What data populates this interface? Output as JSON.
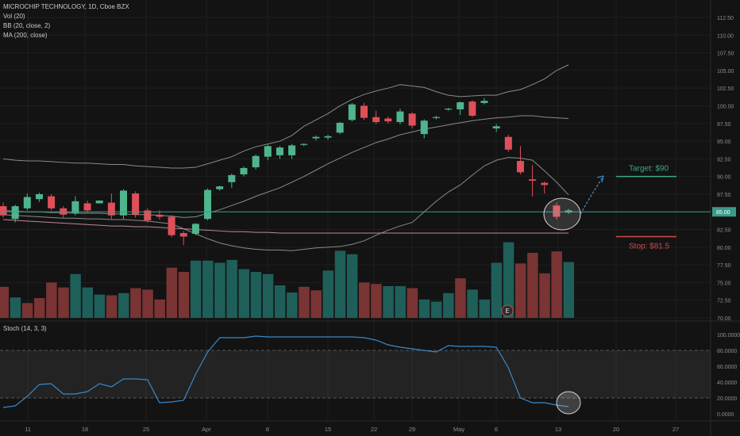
{
  "header": {
    "symbol_line": "MICROCHIP TECHNOLOGY, 1D, Cboe BZX",
    "indicator_vol": "Vol (20)",
    "indicator_bb": "BB (20, close, 2)",
    "indicator_ma": "MA (200, close)"
  },
  "stoch": {
    "label": "Stoch (14, 3, 3)"
  },
  "annotations": {
    "target_label": "Target: $90",
    "stop_label": "Stop: $81.5",
    "price_label": "85.00",
    "event_badge": "E"
  },
  "colors": {
    "background": "#131313",
    "up": "#4fb58c",
    "down": "#e0505a",
    "vol_up": "#1f5f5a",
    "vol_down": "#7a3434",
    "bb": "#8a8a8a",
    "ma": "#c08898",
    "price_line": "#3a9a88",
    "stoch_line": "#3a88c8",
    "target": "#3fa58a",
    "stop": "#d04a4a"
  },
  "chart_data": {
    "type": "candlestick",
    "title": "MICROCHIP TECHNOLOGY, 1D, Cboe BZX",
    "y_ticks": [
      "112.50",
      "110.00",
      "107.50",
      "105.00",
      "102.50",
      "100.00",
      "97.50",
      "95.00",
      "92.50",
      "90.00",
      "87.50",
      "85.00",
      "82.50",
      "80.00",
      "77.50",
      "75.00",
      "72.50",
      "70.00"
    ],
    "x_ticks": [
      "11",
      "18",
      "25",
      "Apr",
      "8",
      "15",
      "22",
      "29",
      "May",
      "6",
      "13",
      "20",
      "27"
    ],
    "stoch_ticks": [
      "100.0000",
      "80.0000",
      "60.0000",
      "40.0000",
      "20.0000",
      "0.0000"
    ],
    "stoch_band": [
      20,
      80
    ],
    "ylim": [
      70,
      114
    ],
    "candles": [
      {
        "o": 85.8,
        "h": 86.3,
        "c": 84.5,
        "l": 84.2
      },
      {
        "o": 84.0,
        "h": 86.0,
        "c": 85.8,
        "l": 83.5
      },
      {
        "o": 85.5,
        "h": 87.6,
        "c": 87.1,
        "l": 85.2
      },
      {
        "o": 86.8,
        "h": 87.7,
        "c": 87.5,
        "l": 86.4
      },
      {
        "o": 87.2,
        "h": 87.5,
        "c": 85.5,
        "l": 85.2
      },
      {
        "o": 85.5,
        "h": 85.8,
        "c": 84.6,
        "l": 84.2
      },
      {
        "o": 84.8,
        "h": 87.2,
        "c": 86.5,
        "l": 84.5
      },
      {
        "o": 86.2,
        "h": 86.6,
        "c": 85.2,
        "l": 84.9
      },
      {
        "o": 86.2,
        "h": 86.6,
        "c": 86.6,
        "l": 86.2
      },
      {
        "o": 86.3,
        "h": 87.6,
        "c": 84.5,
        "l": 84.0
      },
      {
        "o": 84.5,
        "h": 88.2,
        "c": 88.0,
        "l": 84.0
      },
      {
        "o": 87.6,
        "h": 87.9,
        "c": 84.6,
        "l": 84.2
      },
      {
        "o": 85.2,
        "h": 85.5,
        "c": 83.8,
        "l": 83.5
      },
      {
        "o": 84.6,
        "h": 85.2,
        "c": 84.3,
        "l": 83.9
      },
      {
        "o": 84.3,
        "h": 84.5,
        "c": 81.7,
        "l": 81.4
      },
      {
        "o": 82.0,
        "h": 82.3,
        "c": 81.5,
        "l": 80.3
      },
      {
        "o": 81.9,
        "h": 83.4,
        "c": 83.3,
        "l": 81.7
      },
      {
        "o": 84.0,
        "h": 88.3,
        "c": 88.1,
        "l": 83.8
      },
      {
        "o": 88.2,
        "h": 88.7,
        "c": 88.6,
        "l": 88.0
      },
      {
        "o": 89.2,
        "h": 90.4,
        "c": 90.2,
        "l": 88.4
      },
      {
        "o": 90.3,
        "h": 91.4,
        "c": 91.2,
        "l": 90.0
      },
      {
        "o": 91.3,
        "h": 93.1,
        "c": 92.9,
        "l": 91.0
      },
      {
        "o": 92.8,
        "h": 94.5,
        "c": 94.3,
        "l": 92.3
      },
      {
        "o": 93.0,
        "h": 94.3,
        "c": 94.1,
        "l": 92.5
      },
      {
        "o": 93.0,
        "h": 94.6,
        "c": 94.4,
        "l": 92.5
      },
      {
        "o": 94.5,
        "h": 94.7,
        "c": 94.6,
        "l": 94.3
      },
      {
        "o": 95.4,
        "h": 95.8,
        "c": 95.6,
        "l": 95.1
      },
      {
        "o": 95.5,
        "h": 95.9,
        "c": 95.7,
        "l": 95.2
      },
      {
        "o": 96.2,
        "h": 97.7,
        "c": 97.6,
        "l": 96.0
      },
      {
        "o": 98.0,
        "h": 100.4,
        "c": 100.2,
        "l": 97.8
      },
      {
        "o": 100.0,
        "h": 100.4,
        "c": 98.3,
        "l": 98.0
      },
      {
        "o": 98.4,
        "h": 99.3,
        "c": 97.7,
        "l": 97.4
      },
      {
        "o": 98.2,
        "h": 98.5,
        "c": 97.8,
        "l": 97.5
      },
      {
        "o": 97.7,
        "h": 99.6,
        "c": 99.2,
        "l": 97.4
      },
      {
        "o": 98.9,
        "h": 99.1,
        "c": 97.2,
        "l": 96.8
      },
      {
        "o": 96.0,
        "h": 98.1,
        "c": 97.9,
        "l": 95.4
      },
      {
        "o": 98.3,
        "h": 98.6,
        "c": 98.4,
        "l": 98.1
      },
      {
        "o": 99.5,
        "h": 99.7,
        "c": 99.6,
        "l": 99.3
      },
      {
        "o": 99.5,
        "h": 100.6,
        "c": 100.5,
        "l": 98.7
      },
      {
        "o": 100.6,
        "h": 100.8,
        "c": 98.6,
        "l": 98.4
      },
      {
        "o": 100.4,
        "h": 101.1,
        "c": 100.7,
        "l": 100.2
      },
      {
        "o": 96.8,
        "h": 97.4,
        "c": 97.1,
        "l": 96.3
      },
      {
        "o": 95.6,
        "h": 95.9,
        "c": 93.8,
        "l": 93.5
      },
      {
        "o": 92.2,
        "h": 94.3,
        "c": 90.6,
        "l": 90.3
      },
      {
        "o": 89.6,
        "h": 91.6,
        "c": 89.4,
        "l": 87.2
      },
      {
        "o": 89.1,
        "h": 89.3,
        "c": 88.8,
        "l": 87.6
      },
      {
        "o": 85.9,
        "h": 86.3,
        "c": 84.3,
        "l": 83.9
      },
      {
        "o": 84.9,
        "h": 85.4,
        "c": 85.2,
        "l": 84.7
      }
    ],
    "volume_up": [
      false,
      true,
      false,
      false,
      false,
      false,
      true,
      true,
      true,
      false,
      true,
      false,
      false,
      false,
      false,
      false,
      true,
      true,
      true,
      true,
      true,
      true,
      true,
      true,
      true,
      false,
      false,
      true,
      true,
      true,
      false,
      false,
      true,
      true,
      false,
      true,
      true,
      true,
      false,
      true,
      true,
      true,
      true,
      false,
      false,
      false,
      false,
      true
    ],
    "volume": [
      74.4,
      72.9,
      72.1,
      72.8,
      75.0,
      74.3,
      76.2,
      74.3,
      73.3,
      73.2,
      73.5,
      74.2,
      74.0,
      72.6,
      77.1,
      76.5,
      78.1,
      78.1,
      77.8,
      78.2,
      76.9,
      76.5,
      76.2,
      74.6,
      73.6,
      74.4,
      73.9,
      76.7,
      79.5,
      79.0,
      75.0,
      74.8,
      74.5,
      74.5,
      74.2,
      72.6,
      72.3,
      73.5,
      75.6,
      74.0,
      72.6,
      77.8,
      80.7,
      77.7,
      79.2,
      76.3,
      79.4,
      77.9
    ],
    "bb_upper": [
      92.5,
      92.3,
      92.2,
      92.2,
      92.1,
      92.0,
      91.9,
      91.9,
      91.8,
      91.7,
      91.7,
      91.5,
      91.4,
      91.3,
      91.2,
      91.2,
      91.3,
      91.8,
      92.3,
      92.8,
      93.6,
      94.2,
      94.6,
      95.0,
      95.8,
      97.1,
      98.0,
      98.9,
      100.0,
      100.9,
      101.6,
      102.1,
      102.5,
      103.0,
      102.8,
      102.6,
      102.0,
      101.5,
      101.3,
      101.4,
      101.5,
      101.5,
      102.0,
      102.3,
      103.0,
      103.8,
      105.0,
      105.8
    ],
    "bb_mid": [
      85.2,
      85.1,
      85.0,
      85.0,
      84.9,
      84.9,
      84.8,
      84.8,
      84.8,
      84.7,
      84.7,
      84.6,
      84.6,
      84.5,
      84.4,
      84.2,
      84.3,
      84.8,
      85.3,
      85.9,
      86.5,
      87.2,
      87.8,
      88.4,
      89.2,
      90.0,
      90.9,
      91.8,
      92.6,
      93.4,
      94.1,
      94.8,
      95.3,
      95.9,
      96.3,
      96.7,
      97.0,
      97.3,
      97.6,
      97.9,
      98.1,
      98.3,
      98.4,
      98.6,
      98.6,
      98.4,
      98.3,
      98.2
    ],
    "bb_lower": [
      84.6,
      84.5,
      84.4,
      84.3,
      84.2,
      84.1,
      84.1,
      84.0,
      84.0,
      83.9,
      83.9,
      83.8,
      83.7,
      83.5,
      83.3,
      82.6,
      81.9,
      81.2,
      80.6,
      80.2,
      79.9,
      79.7,
      79.6,
      79.6,
      79.5,
      79.7,
      79.9,
      80.0,
      80.1,
      80.4,
      80.9,
      81.7,
      82.4,
      83.0,
      83.5,
      85.0,
      86.5,
      87.8,
      88.8,
      90.2,
      91.5,
      92.3,
      92.7,
      92.6,
      92.3,
      90.8,
      89.2,
      87.4
    ],
    "ma200": [
      83.9,
      83.8,
      83.7,
      83.6,
      83.5,
      83.4,
      83.3,
      83.2,
      83.1,
      83.0,
      83.0,
      82.9,
      82.9,
      82.8,
      82.7,
      82.6,
      82.5,
      82.4,
      82.3,
      82.2,
      82.2,
      82.1,
      82.1,
      82.0,
      82.0,
      82.0,
      82.0,
      82.0,
      82.0,
      82.0,
      82.0,
      82.0,
      82.0,
      82.0,
      82.0,
      82.0,
      82.0,
      82.0,
      82.0,
      82.0,
      82.0,
      82.0,
      82.0,
      82.0,
      82.0,
      82.0,
      82.0,
      82.0
    ],
    "stoch": [
      8,
      10,
      22,
      37,
      38,
      25,
      25,
      28,
      38,
      34,
      44,
      44,
      43,
      14,
      15,
      17,
      50,
      78,
      96,
      96,
      96,
      98,
      97,
      97,
      97,
      97,
      97,
      97,
      97,
      97,
      96,
      93,
      87,
      84,
      82,
      80,
      78,
      86,
      85,
      85,
      85,
      84,
      58,
      20,
      14,
      14,
      11,
      9
    ],
    "target": 90,
    "stop": 81.5,
    "price_line": 85
  }
}
